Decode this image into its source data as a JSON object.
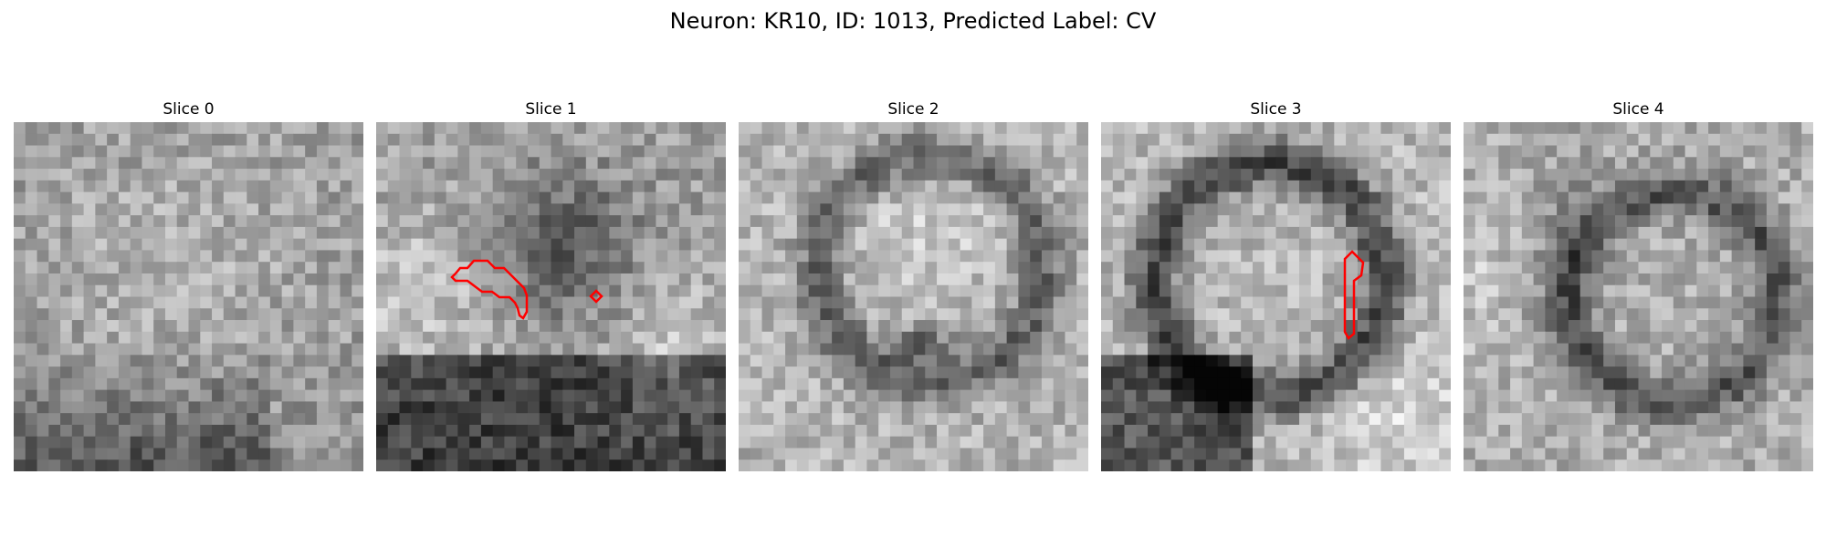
{
  "figure": {
    "title": "Neuron: KR10, ID: 1013, Predicted Label: CV"
  },
  "contour_color": "#ff0000",
  "colormap": "gray",
  "grid_size": 30,
  "slices": [
    {
      "title": "Slice 0",
      "has_contour": false
    },
    {
      "title": "Slice 1",
      "has_contour": true
    },
    {
      "title": "Slice 2",
      "has_contour": false
    },
    {
      "title": "Slice 3",
      "has_contour": true
    },
    {
      "title": "Slice 4",
      "has_contour": false
    }
  ]
}
